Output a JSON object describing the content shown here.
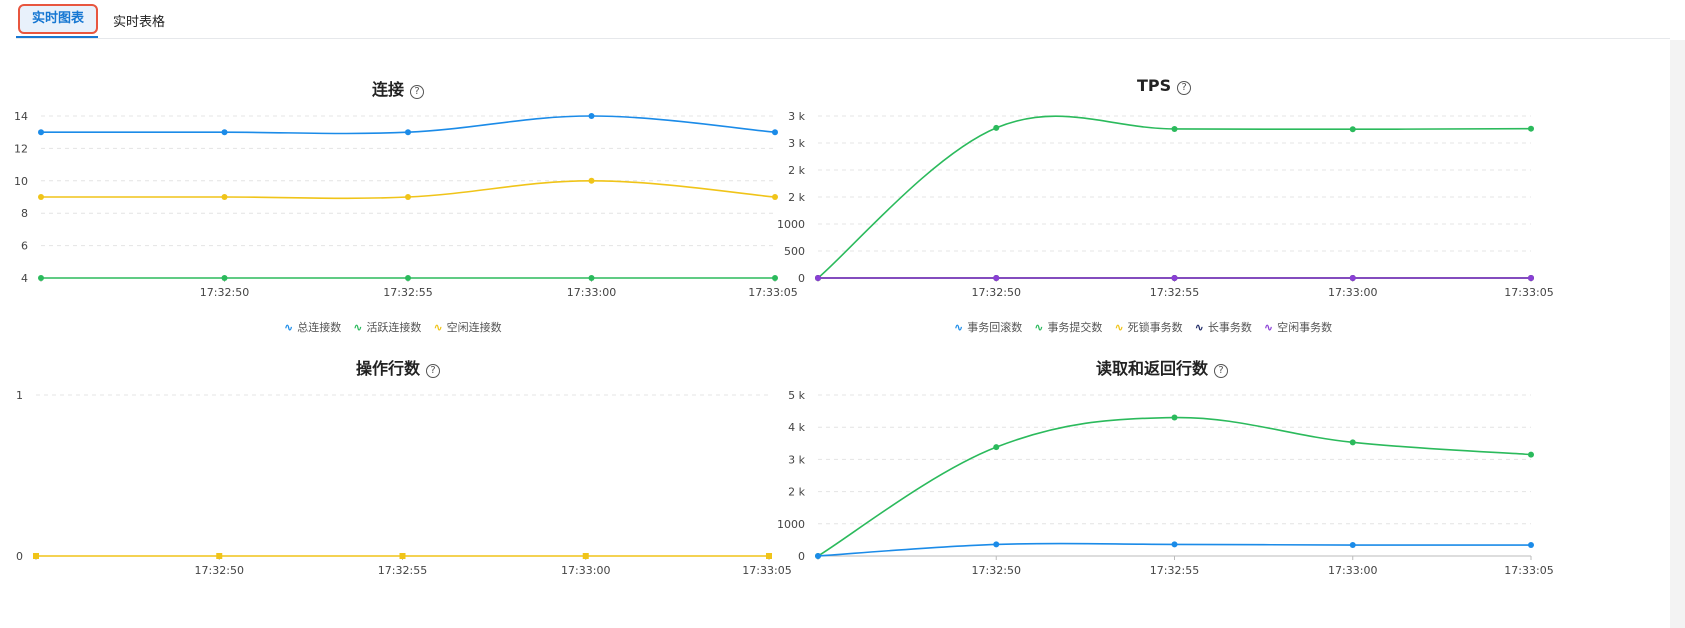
{
  "tabs": [
    "实时图表",
    "实时表格"
  ],
  "icons": {
    "help": "help-icon",
    "legend": "wave-icon"
  },
  "charts": [
    {
      "id": "connections",
      "title": "连接",
      "chart_data": {
        "type": "line",
        "x": [
          "",
          "17:32:50",
          "17:32:55",
          "17:33:00",
          "17:33:05"
        ],
        "y_ticks": [
          "4",
          "6",
          "8",
          "10",
          "12",
          "14"
        ],
        "ylim": [
          4,
          14
        ],
        "series": [
          {
            "name": "总连接数",
            "color": "#1b8be8",
            "values": [
              13,
              13,
              13,
              14,
              13
            ]
          },
          {
            "name": "活跃连接数",
            "color": "#2bba5c",
            "values": [
              4,
              4,
              4,
              4,
              4
            ]
          },
          {
            "name": "空闲连接数",
            "color": "#f0c419",
            "values": [
              9,
              9,
              9,
              10,
              9
            ]
          }
        ]
      }
    },
    {
      "id": "tps",
      "title": "TPS",
      "chart_data": {
        "type": "line",
        "x": [
          "",
          "17:32:50",
          "17:32:55",
          "17:33:00",
          "17:33:05"
        ],
        "y_ticks": [
          "0",
          "500",
          "1000",
          "2 k",
          "2 k",
          "3 k",
          "3 k"
        ],
        "ylim": [
          0,
          3000
        ],
        "series": [
          {
            "name": "事务回滚数",
            "color": "#1b8be8",
            "values": [
              0,
              0,
              0,
              0,
              0
            ]
          },
          {
            "name": "事务提交数",
            "color": "#2bba5c",
            "values": [
              0,
              2780,
              2760,
              2755,
              2765
            ]
          },
          {
            "name": "死锁事务数",
            "color": "#f0c419",
            "values": [
              0,
              0,
              0,
              0,
              0
            ]
          },
          {
            "name": "长事务数",
            "color": "#1f2a66",
            "values": [
              0,
              0,
              0,
              0,
              0
            ]
          },
          {
            "name": "空闲事务数",
            "color": "#8a3fd6",
            "values": [
              0,
              0,
              0,
              0,
              0
            ]
          }
        ]
      }
    },
    {
      "id": "ops",
      "title": "操作行数",
      "chart_data": {
        "type": "line",
        "x": [
          "",
          "17:32:50",
          "17:32:55",
          "17:33:00",
          "17:33:05"
        ],
        "y_ticks": [
          "0",
          "1"
        ],
        "ylim": [
          0,
          1
        ],
        "series": [
          {
            "name": "",
            "color": "#f0c419",
            "values": [
              0,
              0,
              0,
              0,
              0
            ]
          }
        ]
      }
    },
    {
      "id": "readrows",
      "title": "读取和返回行数",
      "chart_data": {
        "type": "line",
        "x": [
          "",
          "17:32:50",
          "17:32:55",
          "17:33:00",
          "17:33:05"
        ],
        "y_ticks": [
          "0",
          "1000",
          "2 k",
          "3 k",
          "4 k",
          "5 k"
        ],
        "ylim": [
          0,
          5000
        ],
        "series": [
          {
            "name": "",
            "color": "#2bba5c",
            "values": [
              0,
              3380,
              4300,
              3530,
              3150
            ]
          },
          {
            "name": "",
            "color": "#1b8be8",
            "values": [
              0,
              360,
              360,
              340,
              340
            ]
          }
        ]
      }
    }
  ]
}
